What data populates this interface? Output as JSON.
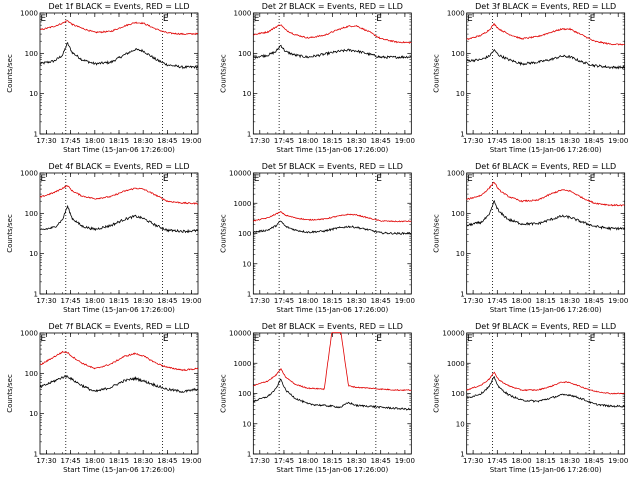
{
  "figure": {
    "xlabel": "Start Time (15-Jan-06 17:26:00)",
    "ylabel": "Counts/sec",
    "x_tick_labels": [
      "17:30",
      "17:45",
      "18:00",
      "18:15",
      "18:30",
      "18:45",
      "19:00"
    ],
    "event_markers": [
      "E",
      "E"
    ],
    "colors": {
      "events": "#000000",
      "lld": "#e00000",
      "background": "#ffffff"
    }
  },
  "chart_data": [
    {
      "type": "line",
      "title": "Det 1f BLACK = Events, RED = LLD",
      "ymax": 1000,
      "xrange": [
        "17:26",
        "19:04"
      ],
      "x": [
        "17:26",
        "17:35",
        "17:40",
        "17:43",
        "17:46",
        "17:52",
        "18:00",
        "18:10",
        "18:18",
        "18:25",
        "18:30",
        "18:38",
        "18:45",
        "18:55",
        "19:03"
      ],
      "vlines": [
        "17:42",
        "18:42"
      ],
      "marker_time": [
        "17:28",
        "18:44"
      ],
      "series": [
        {
          "name": "Events",
          "values": [
            55,
            65,
            90,
            180,
            105,
            70,
            55,
            60,
            90,
            125,
            115,
            70,
            52,
            45,
            46
          ]
        },
        {
          "name": "LLD",
          "values": [
            380,
            470,
            560,
            650,
            520,
            420,
            330,
            350,
            470,
            580,
            560,
            400,
            320,
            300,
            305
          ]
        }
      ]
    },
    {
      "type": "line",
      "title": "Det 2f BLACK = Events, RED = LLD",
      "ymax": 1000,
      "xrange": [
        "17:26",
        "19:04"
      ],
      "x": [
        "17:26",
        "17:35",
        "17:40",
        "17:43",
        "17:46",
        "17:52",
        "18:00",
        "18:10",
        "18:18",
        "18:25",
        "18:30",
        "18:38",
        "18:45",
        "18:55",
        "19:03"
      ],
      "vlines": [
        "17:42",
        "18:42"
      ],
      "marker_time": [
        "17:28",
        "18:44"
      ],
      "series": [
        {
          "name": "Events",
          "values": [
            80,
            90,
            110,
            160,
            110,
            90,
            80,
            95,
            110,
            120,
            115,
            95,
            80,
            80,
            82
          ]
        },
        {
          "name": "LLD",
          "values": [
            290,
            340,
            450,
            520,
            380,
            290,
            240,
            280,
            380,
            470,
            480,
            340,
            230,
            190,
            185
          ]
        }
      ]
    },
    {
      "type": "line",
      "title": "Det 3f BLACK = Events, RED = LLD",
      "ymax": 1000,
      "xrange": [
        "17:26",
        "19:04"
      ],
      "x": [
        "17:26",
        "17:35",
        "17:40",
        "17:43",
        "17:46",
        "17:52",
        "18:00",
        "18:10",
        "18:18",
        "18:25",
        "18:30",
        "18:38",
        "18:45",
        "18:55",
        "19:03"
      ],
      "vlines": [
        "17:42",
        "18:42"
      ],
      "marker_time": [
        "17:28",
        "18:44"
      ],
      "series": [
        {
          "name": "Events",
          "values": [
            65,
            70,
            85,
            120,
            90,
            70,
            55,
            60,
            70,
            85,
            82,
            60,
            50,
            45,
            45
          ]
        },
        {
          "name": "LLD",
          "values": [
            220,
            280,
            380,
            540,
            400,
            300,
            230,
            260,
            330,
            400,
            400,
            280,
            200,
            170,
            165
          ]
        }
      ]
    },
    {
      "type": "line",
      "title": "Det 4f BLACK = Events, RED = LLD",
      "ymax": 1000,
      "xrange": [
        "17:26",
        "19:04"
      ],
      "x": [
        "17:26",
        "17:35",
        "17:40",
        "17:43",
        "17:46",
        "17:52",
        "18:00",
        "18:10",
        "18:18",
        "18:25",
        "18:30",
        "18:38",
        "18:45",
        "18:55",
        "19:03"
      ],
      "vlines": [
        "17:42",
        "18:42"
      ],
      "marker_time": [
        "17:28",
        "18:44"
      ],
      "series": [
        {
          "name": "Events",
          "values": [
            38,
            45,
            70,
            150,
            75,
            48,
            40,
            50,
            70,
            85,
            75,
            50,
            38,
            36,
            37
          ]
        },
        {
          "name": "LLD",
          "values": [
            250,
            330,
            420,
            490,
            360,
            270,
            230,
            260,
            350,
            420,
            400,
            280,
            200,
            180,
            175
          ]
        }
      ]
    },
    {
      "type": "line",
      "title": "Det 5f BLACK = Events, RED = LLD",
      "ymax": 10000,
      "xrange": [
        "17:26",
        "19:04"
      ],
      "x": [
        "17:26",
        "17:35",
        "17:40",
        "17:43",
        "17:46",
        "17:52",
        "18:00",
        "18:10",
        "18:18",
        "18:25",
        "18:30",
        "18:38",
        "18:45",
        "18:55",
        "19:03"
      ],
      "vlines": [
        "17:42",
        "18:42"
      ],
      "marker_time": [
        "17:28",
        "18:44"
      ],
      "series": [
        {
          "name": "Events",
          "values": [
            110,
            130,
            180,
            260,
            170,
            130,
            110,
            120,
            150,
            170,
            160,
            130,
            105,
            100,
            102
          ]
        },
        {
          "name": "LLD",
          "values": [
            260,
            330,
            440,
            520,
            400,
            330,
            280,
            300,
            370,
            430,
            410,
            320,
            260,
            250,
            255
          ]
        }
      ]
    },
    {
      "type": "line",
      "title": "Det 6f BLACK = Events, RED = LLD",
      "ymax": 1000,
      "xrange": [
        "17:26",
        "19:04"
      ],
      "x": [
        "17:26",
        "17:35",
        "17:40",
        "17:43",
        "17:46",
        "17:52",
        "18:00",
        "18:10",
        "18:18",
        "18:25",
        "18:30",
        "18:38",
        "18:45",
        "18:55",
        "19:03"
      ],
      "vlines": [
        "17:42",
        "18:42"
      ],
      "marker_time": [
        "17:28",
        "18:44"
      ],
      "series": [
        {
          "name": "Events",
          "values": [
            50,
            60,
            90,
            200,
            110,
            70,
            55,
            55,
            70,
            85,
            80,
            60,
            48,
            42,
            42
          ]
        },
        {
          "name": "LLD",
          "values": [
            220,
            280,
            420,
            600,
            380,
            260,
            200,
            210,
            300,
            380,
            360,
            240,
            180,
            160,
            158
          ]
        }
      ]
    },
    {
      "type": "line",
      "title": "Det 7f BLACK = Events, RED = LLD",
      "ymax": 1000,
      "xrange": [
        "17:26",
        "19:04"
      ],
      "x": [
        "17:26",
        "17:35",
        "17:40",
        "17:43",
        "17:46",
        "17:52",
        "18:00",
        "18:10",
        "18:18",
        "18:25",
        "18:30",
        "18:38",
        "18:45",
        "18:55",
        "19:03"
      ],
      "vlines": [
        "17:42",
        "18:42"
      ],
      "marker_time": [
        "17:28",
        "18:44"
      ],
      "series": [
        {
          "name": "Events",
          "values": [
            45,
            65,
            80,
            85,
            70,
            50,
            35,
            45,
            65,
            75,
            65,
            50,
            40,
            35,
            40
          ]
        },
        {
          "name": "LLD",
          "values": [
            160,
            260,
            340,
            330,
            260,
            180,
            130,
            170,
            260,
            310,
            270,
            180,
            140,
            120,
            130
          ]
        }
      ]
    },
    {
      "type": "line",
      "title": "Det 8f BLACK = Events, RED = LLD",
      "ymax": 10000,
      "xrange": [
        "17:26",
        "19:04"
      ],
      "x": [
        "17:26",
        "17:35",
        "17:40",
        "17:43",
        "17:46",
        "17:52",
        "18:00",
        "18:10",
        "18:15",
        "18:20",
        "18:25",
        "18:30",
        "18:38",
        "18:45",
        "18:55",
        "19:03"
      ],
      "vlines": [
        "17:42",
        "18:42"
      ],
      "marker_time": [
        "17:28",
        "18:44"
      ],
      "series": [
        {
          "name": "Events",
          "values": [
            55,
            80,
            140,
            300,
            130,
            70,
            45,
            40,
            38,
            35,
            50,
            40,
            38,
            35,
            32,
            30
          ]
        },
        {
          "name": "LLD",
          "values": [
            180,
            260,
            400,
            650,
            350,
            200,
            150,
            140,
            14000,
            14000,
            180,
            160,
            150,
            140,
            130,
            130
          ]
        }
      ]
    },
    {
      "type": "line",
      "title": "Det 9f BLACK = Events, RED = LLD",
      "ymax": 10000,
      "xrange": [
        "17:26",
        "19:04"
      ],
      "x": [
        "17:26",
        "17:35",
        "17:40",
        "17:43",
        "17:46",
        "17:52",
        "18:00",
        "18:10",
        "18:18",
        "18:25",
        "18:30",
        "18:38",
        "18:45",
        "18:55",
        "19:03"
      ],
      "vlines": [
        "17:42",
        "18:42"
      ],
      "marker_time": [
        "17:28",
        "18:44"
      ],
      "series": [
        {
          "name": "Events",
          "values": [
            70,
            100,
            170,
            350,
            160,
            90,
            60,
            55,
            70,
            90,
            90,
            65,
            45,
            38,
            38
          ]
        },
        {
          "name": "LLD",
          "values": [
            130,
            190,
            300,
            500,
            280,
            180,
            130,
            130,
            170,
            240,
            230,
            160,
            120,
            100,
            100
          ]
        }
      ]
    }
  ]
}
